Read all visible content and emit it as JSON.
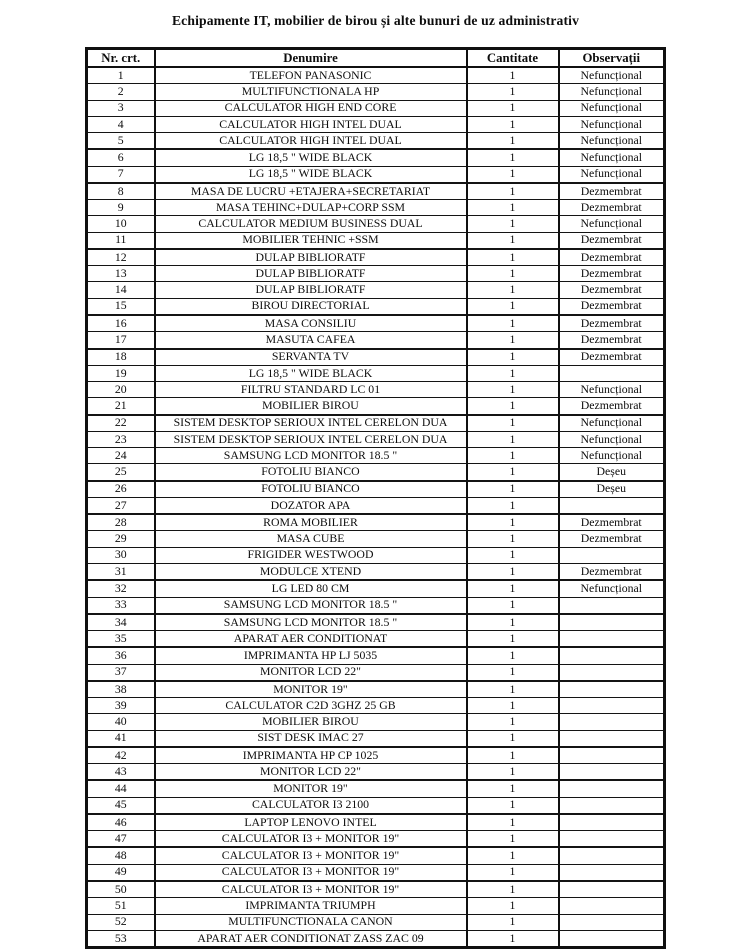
{
  "title": "Echipamente IT, mobilier de birou și alte bunuri de uz administrativ",
  "table": {
    "headers": [
      "Nr. crt.",
      "Denumire",
      "Cantitate",
      "Observații"
    ],
    "thick_top_rows": [
      6,
      8,
      12,
      16,
      18,
      22,
      26,
      28,
      32,
      34,
      36,
      38,
      42,
      44,
      46,
      48,
      50
    ],
    "rows": [
      [
        "1",
        "TELEFON PANASONIC",
        "1",
        "Nefuncțional"
      ],
      [
        "2",
        "MULTIFUNCTIONALA HP",
        "1",
        "Nefuncțional"
      ],
      [
        "3",
        "CALCULATOR HIGH END CORE",
        "1",
        "Nefuncțional"
      ],
      [
        "4",
        "CALCULATOR HIGH INTEL DUAL",
        "1",
        "Nefuncțional"
      ],
      [
        "5",
        "CALCULATOR HIGH INTEL DUAL",
        "1",
        "Nefuncțional"
      ],
      [
        "6",
        "LG 18,5 \" WIDE BLACK",
        "1",
        "Nefuncțional"
      ],
      [
        "7",
        "LG 18,5 \" WIDE BLACK",
        "1",
        "Nefuncțional"
      ],
      [
        "8",
        "MASA DE LUCRU +ETAJERA+SECRETARIAT",
        "1",
        "Dezmembrat"
      ],
      [
        "9",
        "MASA TEHINC+DULAP+CORP SSM",
        "1",
        "Dezmembrat"
      ],
      [
        "10",
        "CALCULATOR MEDIUM BUSINESS DUAL",
        "1",
        "Nefuncțional"
      ],
      [
        "11",
        "MOBILIER TEHNIC +SSM",
        "1",
        "Dezmembrat"
      ],
      [
        "12",
        "DULAP BIBLIORATF",
        "1",
        "Dezmembrat"
      ],
      [
        "13",
        "DULAP BIBLIORATF",
        "1",
        "Dezmembrat"
      ],
      [
        "14",
        "DULAP BIBLIORATF",
        "1",
        "Dezmembrat"
      ],
      [
        "15",
        "BIROU DIRECTORIAL",
        "1",
        "Dezmembrat"
      ],
      [
        "16",
        "MASA CONSILIU",
        "1",
        "Dezmembrat"
      ],
      [
        "17",
        "MASUTA CAFEA",
        "1",
        "Dezmembrat"
      ],
      [
        "18",
        "SERVANTA TV",
        "1",
        "Dezmembrat"
      ],
      [
        "19",
        "LG 18,5 \" WIDE BLACK",
        "1",
        ""
      ],
      [
        "20",
        "FILTRU STANDARD LC 01",
        "1",
        "Nefuncțional"
      ],
      [
        "21",
        "MOBILIER BIROU",
        "1",
        "Dezmembrat"
      ],
      [
        "22",
        "SISTEM DESKTOP SERIOUX INTEL CERELON DUA",
        "1",
        "Nefuncțional"
      ],
      [
        "23",
        "SISTEM DESKTOP SERIOUX INTEL CERELON DUA",
        "1",
        "Nefuncțional"
      ],
      [
        "24",
        "SAMSUNG LCD MONITOR 18.5 \"",
        "1",
        "Nefuncțional"
      ],
      [
        "25",
        "FOTOLIU BIANCO",
        "1",
        "Deșeu"
      ],
      [
        "26",
        "FOTOLIU BIANCO",
        "1",
        "Deșeu"
      ],
      [
        "27",
        "DOZATOR APA",
        "1",
        ""
      ],
      [
        "28",
        "ROMA MOBILIER",
        "1",
        "Dezmembrat"
      ],
      [
        "29",
        "MASA CUBE",
        "1",
        "Dezmembrat"
      ],
      [
        "30",
        "FRIGIDER WESTWOOD",
        "1",
        ""
      ],
      [
        "31",
        "MODULCE XTEND",
        "1",
        "Dezmembrat"
      ],
      [
        "32",
        "LG LED 80 CM",
        "1",
        "Nefuncțional"
      ],
      [
        "33",
        "SAMSUNG LCD MONITOR 18.5 \"",
        "1",
        ""
      ],
      [
        "34",
        "SAMSUNG LCD MONITOR 18.5 \"",
        "1",
        ""
      ],
      [
        "35",
        "APARAT AER CONDITIONAT",
        "1",
        ""
      ],
      [
        "36",
        "IMPRIMANTA HP LJ 5035",
        "1",
        ""
      ],
      [
        "37",
        "MONITOR LCD 22\"",
        "1",
        ""
      ],
      [
        "38",
        "MONITOR 19\"",
        "1",
        ""
      ],
      [
        "39",
        "CALCULATOR C2D 3GHZ 25 GB",
        "1",
        ""
      ],
      [
        "40",
        "MOBILIER BIROU",
        "1",
        ""
      ],
      [
        "41",
        "SIST DESK IMAC 27",
        "1",
        ""
      ],
      [
        "42",
        "IMPRIMANTA HP CP 1025",
        "1",
        ""
      ],
      [
        "43",
        "MONITOR LCD 22\"",
        "1",
        ""
      ],
      [
        "44",
        "MONITOR 19\"",
        "1",
        ""
      ],
      [
        "45",
        "CALCULATOR I3 2100",
        "1",
        ""
      ],
      [
        "46",
        "LAPTOP LENOVO INTEL",
        "1",
        ""
      ],
      [
        "47",
        "CALCULATOR I3 + MONITOR 19\"",
        "1",
        ""
      ],
      [
        "48",
        "CALCULATOR I3 + MONITOR 19\"",
        "1",
        ""
      ],
      [
        "49",
        "CALCULATOR I3 + MONITOR 19\"",
        "1",
        ""
      ],
      [
        "50",
        "CALCULATOR I3 + MONITOR 19\"",
        "1",
        ""
      ],
      [
        "51",
        "IMPRIMANTA TRIUMPH",
        "1",
        ""
      ],
      [
        "52",
        "MULTIFUNCTIONALA CANON",
        "1",
        ""
      ],
      [
        "53",
        "APARAT AER CONDITIONAT ZASS ZAC 09",
        "1",
        ""
      ]
    ]
  }
}
